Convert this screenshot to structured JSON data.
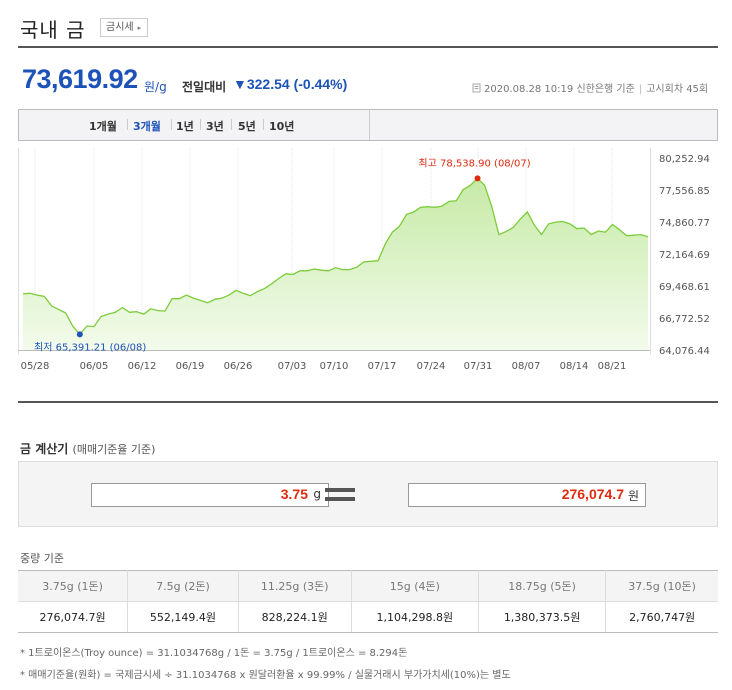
{
  "header": {
    "title": "국내 금",
    "button_label": "금시세",
    "button_arrow": "▸"
  },
  "quote": {
    "price": "73,619.92",
    "unit": "원/g",
    "change_label": "전일대비",
    "change_arrow": "▼",
    "change_value": "322.54",
    "change_pct": "(-0.44%)",
    "date_time": "2020.08.28 10:19",
    "source": "신한은행 기준",
    "round": "고시회차 45회",
    "colors": {
      "down": "#1d53b8",
      "accent_red": "#e02a0f"
    }
  },
  "tabs": {
    "items": [
      "1개월",
      "3개월",
      "1년",
      "3년",
      "5년",
      "10년"
    ],
    "active": "3개월"
  },
  "chart_data": {
    "type": "area",
    "x_tick_labels": [
      "05/28",
      "06/05",
      "06/12",
      "06/19",
      "06/26",
      "07/03",
      "07/10",
      "07/17",
      "07/24",
      "07/31",
      "08/07",
      "08/14",
      "08/21"
    ],
    "y_tick_labels": [
      "80,252.94",
      "77,556.85",
      "74,860.77",
      "72,164.69",
      "69,468.61",
      "66,772.52",
      "64,076.44"
    ],
    "ylim": [
      64076.44,
      80252.94
    ],
    "grid": "vertical",
    "series": [
      {
        "values": [
          68800,
          68850,
          68700,
          68600,
          67800,
          67500,
          67200,
          66100,
          65391.21,
          66100,
          66050,
          66900,
          67100,
          67250,
          67650,
          67250,
          67300,
          67100,
          67550,
          67400,
          67350,
          68400,
          68400,
          68700,
          68450,
          68250,
          68050,
          68350,
          68450,
          68700,
          69100,
          68850,
          68650,
          69000,
          69250,
          69650,
          70100,
          70500,
          70450,
          70750,
          70750,
          70900,
          70800,
          70750,
          71000,
          70850,
          70850,
          71050,
          71500,
          71550,
          71600,
          73000,
          74000,
          74500,
          75500,
          75700,
          76100,
          76150,
          76100,
          76200,
          76600,
          76650,
          77600,
          77950,
          78538.9,
          77950,
          76150,
          73800,
          74050,
          74400,
          75100,
          75700,
          74600,
          73800,
          74700,
          74850,
          74900,
          74700,
          74300,
          74350,
          73800,
          74100,
          74000,
          74650,
          74200,
          73700,
          73750,
          73800,
          73619.92
        ]
      }
    ],
    "annotations": {
      "high": {
        "label": "최고",
        "value": "78,538.90",
        "date": "(08/07)"
      },
      "low": {
        "label": "최저",
        "value": "65,391.21",
        "date": "(06/08)"
      }
    },
    "colors": {
      "line": "#7ccc3a",
      "fill": "#d7f0c3",
      "high": "#e02a0f",
      "low": "#1d53b8"
    }
  },
  "calculator": {
    "title": "금 계산기",
    "subtitle": "(매매기준율 기준)",
    "input_value": "3.75",
    "input_unit": "g",
    "result_value": "276,074.7",
    "result_unit": "원"
  },
  "weights": {
    "label": "중량 기준",
    "columns": [
      "3.75g (1돈)",
      "7.5g (2돈)",
      "11.25g (3돈)",
      "15g (4돈)",
      "18.75g (5돈)",
      "37.5g (10돈)"
    ],
    "values": [
      "276,074.7원",
      "552,149.4원",
      "828,224.1원",
      "1,104,298.8원",
      "1,380,373.5원",
      "2,760,747원"
    ]
  },
  "notes": [
    "* 1트로이온스(Troy ounce) = 31.1034768g / 1돈 = 3.75g / 1트로이온스 = 8.294돈",
    "* 매매기준율(원화) = 국제금시세 ÷ 31.1034768 x 원달러환율 x 99.99% / 실물거래시 부가가치세(10%)는 별도"
  ]
}
